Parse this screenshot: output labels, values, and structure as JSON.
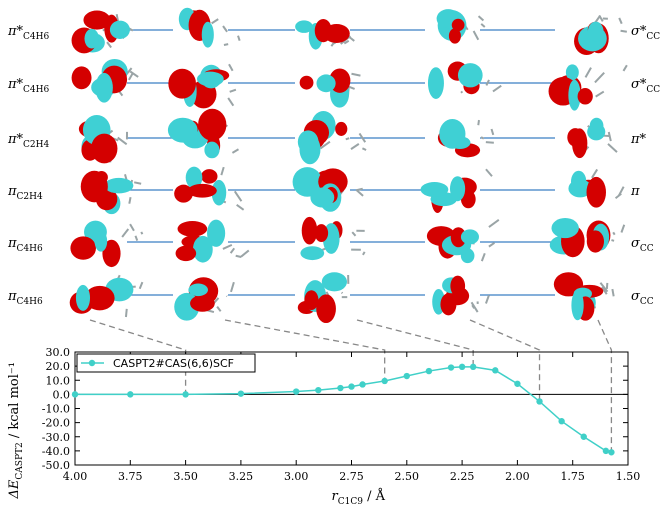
{
  "orbital_rows": [
    {
      "left": "π*",
      "left_sub": "C4H6",
      "right": "σ*",
      "right_sub": "CC"
    },
    {
      "left": "π*",
      "left_sub": "C4H6",
      "right": "σ*",
      "right_sub": "CC"
    },
    {
      "left": "π*",
      "left_sub": "C2H4",
      "right": "π*",
      "right_sub": ""
    },
    {
      "left": "π",
      "left_sub": "C2H4",
      "right": "π",
      "right_sub": ""
    },
    {
      "left": "π",
      "left_sub": "C4H6",
      "right": "σ",
      "right_sub": "CC"
    },
    {
      "left": "π",
      "left_sub": "C4H6",
      "right": "σ",
      "right_sub": "CC"
    }
  ],
  "orbital_lobe_colors": {
    "positive": "#d40000",
    "negative": "#3fd0d4",
    "bond_line": "#3a7fc4"
  },
  "chart_data": {
    "type": "line",
    "series": [
      {
        "name": "CASPT2#CAS(6,6)SCF",
        "color": "#40d0c8",
        "x": [
          4.0,
          3.75,
          3.5,
          3.25,
          3.0,
          2.9,
          2.8,
          2.75,
          2.7,
          2.6,
          2.5,
          2.4,
          2.3,
          2.25,
          2.2,
          2.1,
          2.0,
          1.9,
          1.8,
          1.7,
          1.6,
          1.575
        ],
        "y": [
          0.0,
          0.0,
          0.0,
          0.5,
          2.0,
          3.0,
          4.5,
          5.5,
          7.0,
          9.5,
          13.0,
          16.5,
          19.0,
          19.5,
          19.5,
          17.0,
          7.5,
          -5.0,
          -19.0,
          -30.0,
          -40.0,
          -41.0
        ]
      }
    ],
    "xlabel": "r",
    "xlabel_sub": "C1C9",
    "xlabel_unit": " / Å",
    "ylabel": "ΔE",
    "ylabel_sub": "CASPT2",
    "ylabel_unit": " / kcal mol⁻¹",
    "xlim": [
      4.0,
      1.5
    ],
    "ylim": [
      -50,
      30
    ],
    "xticks": [
      "4.00",
      "3.75",
      "3.50",
      "3.25",
      "3.00",
      "2.75",
      "2.50",
      "2.25",
      "2.00",
      "1.75",
      "1.50"
    ],
    "xtick_values": [
      4.0,
      3.75,
      3.5,
      3.25,
      3.0,
      2.75,
      2.5,
      2.25,
      2.0,
      1.75,
      1.5
    ],
    "yticks": [
      "30.0",
      "20.0",
      "10.0",
      "0.0",
      "-10.0",
      "-20.0",
      "-30.0",
      "-40.0",
      "-50.0"
    ],
    "ytick_values": [
      30,
      20,
      10,
      0,
      -10,
      -20,
      -30,
      -40,
      -50
    ],
    "zero_line": true,
    "legend_position": "top-left",
    "markers": [
      3.5,
      2.6,
      2.2,
      1.9,
      1.575
    ]
  }
}
